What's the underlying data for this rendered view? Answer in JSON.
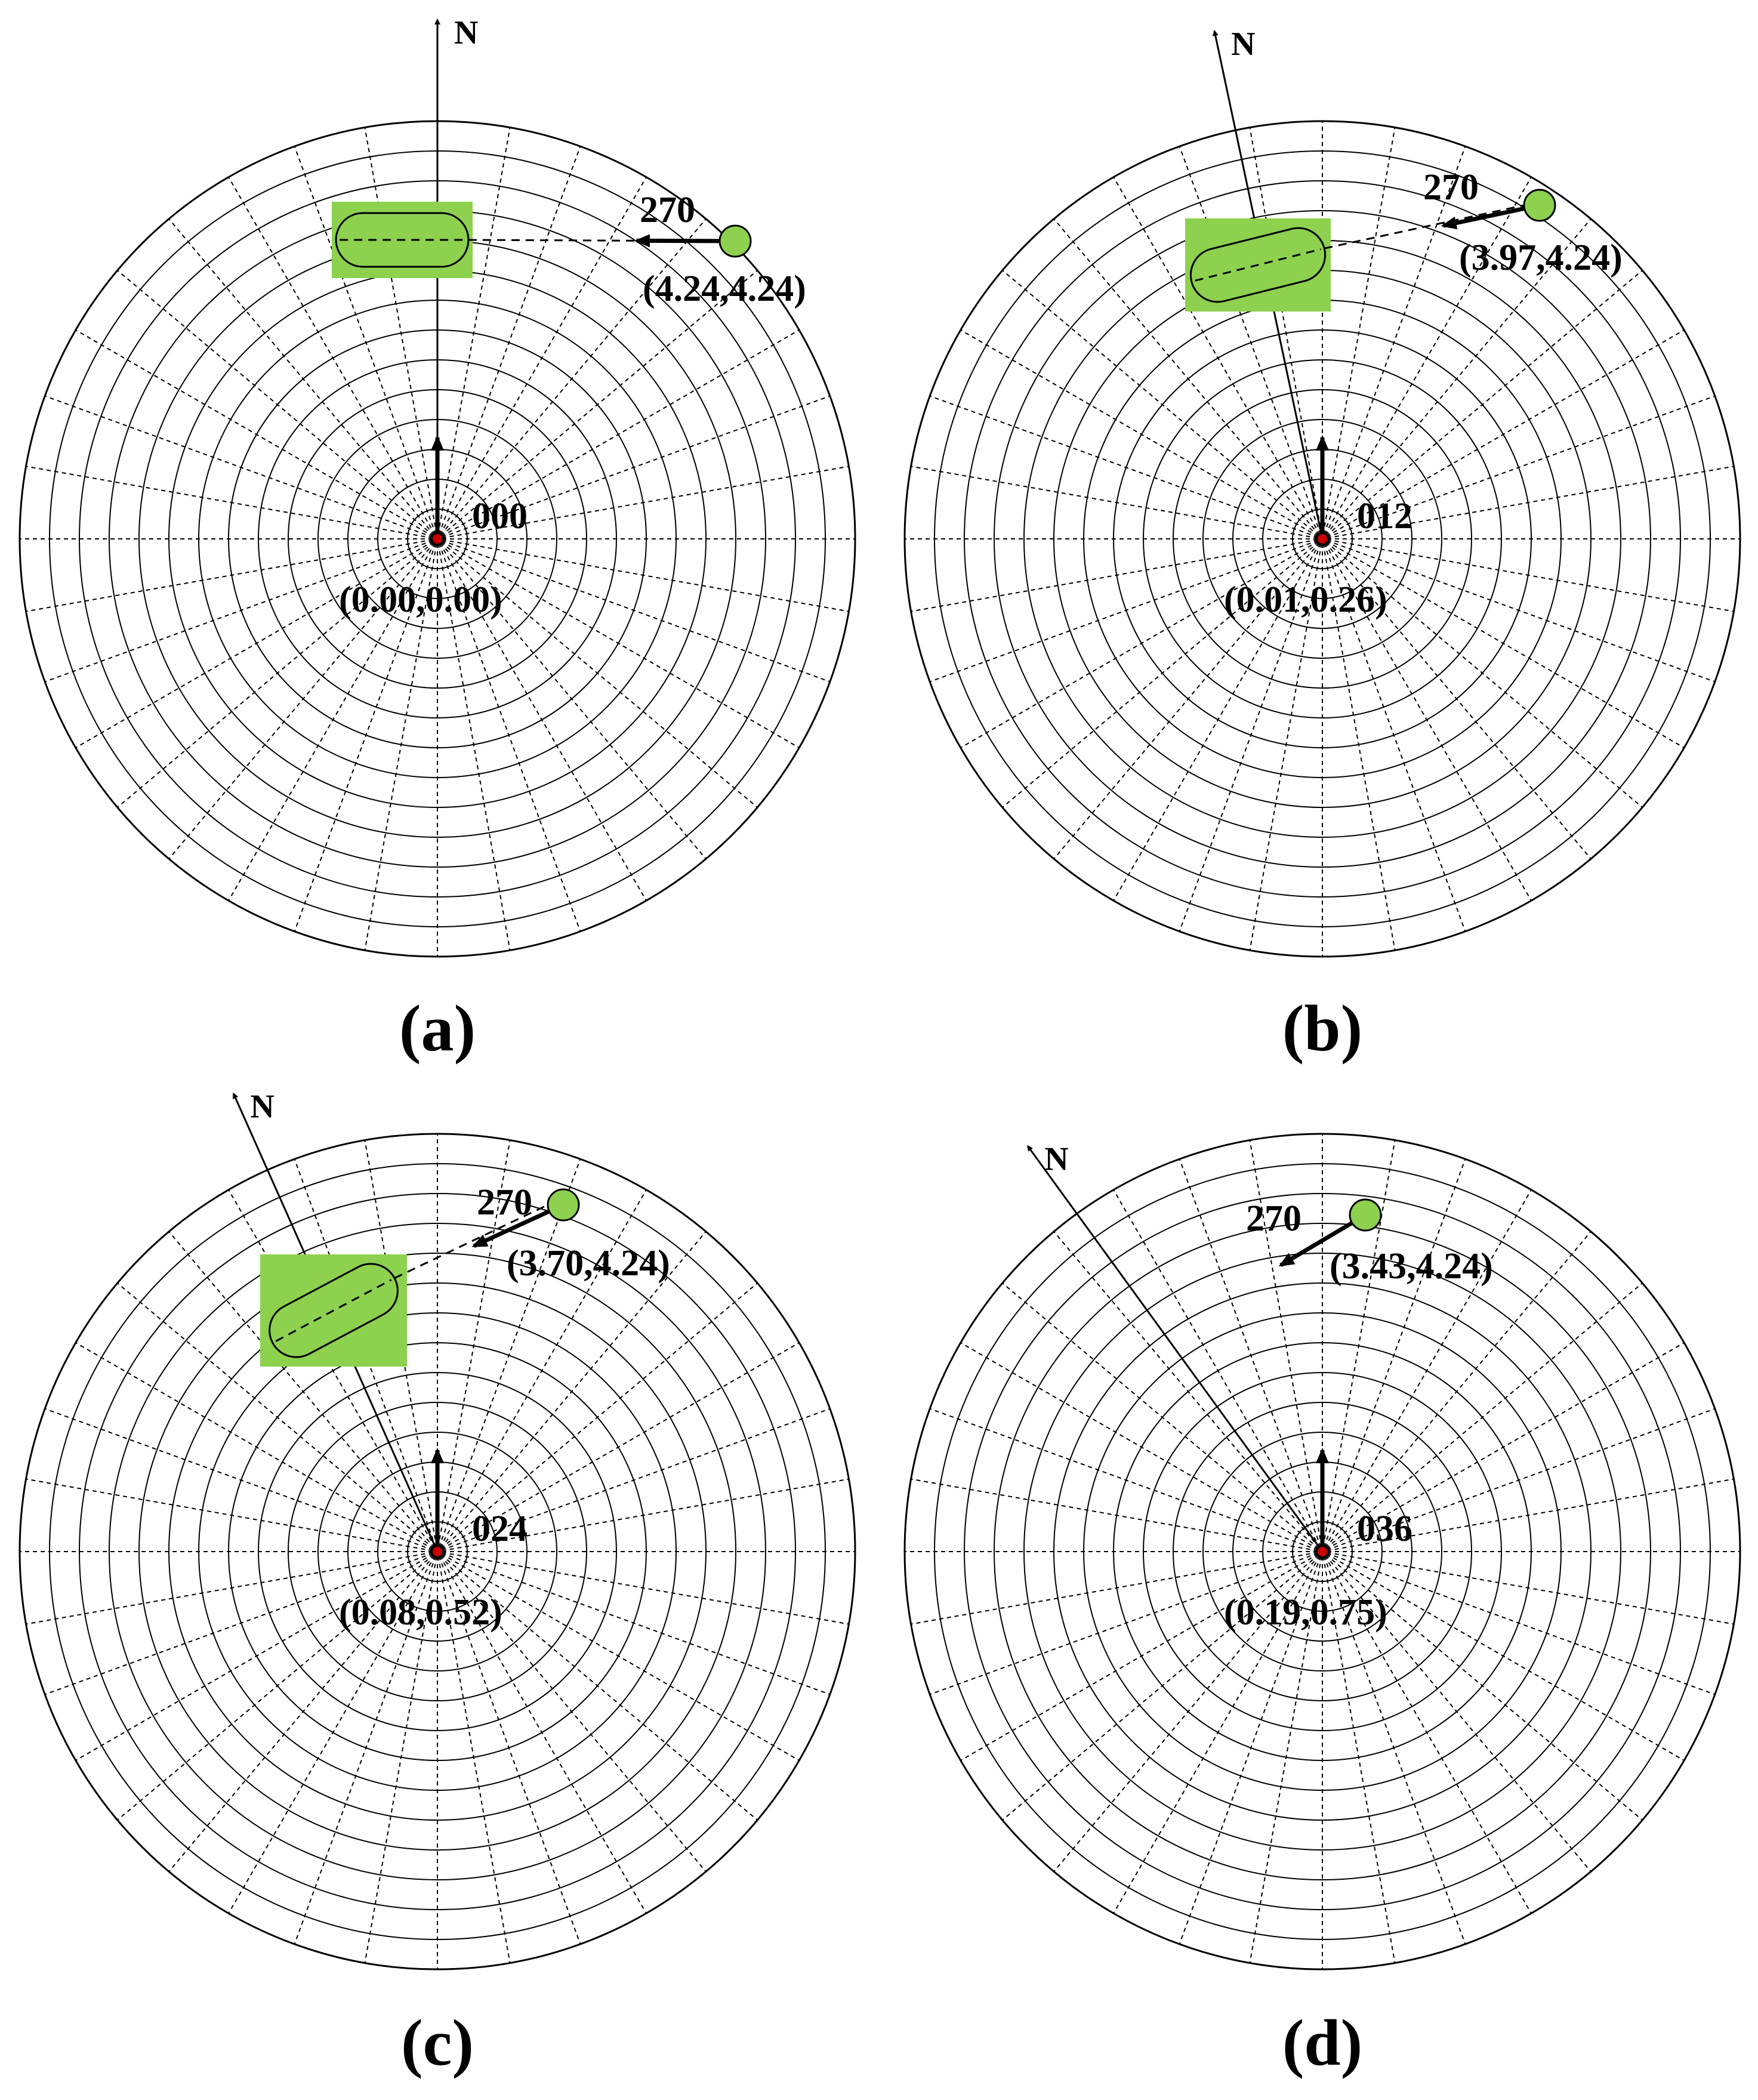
{
  "colors": {
    "grid": "#000000",
    "target_fill": "#8dd14f",
    "zone_fill": "#8dd14f",
    "own_ship_dot": "#cc0000",
    "text": "#000000"
  },
  "north_label": "N",
  "panels": [
    {
      "id": "a",
      "caption": "(a)",
      "own_course": "000",
      "own_position": "(0.00,0.00)",
      "north_rotation_deg": 0,
      "target_course": "270",
      "target_position": "(4.24,4.24)",
      "show_zone": true
    },
    {
      "id": "b",
      "caption": "(b)",
      "own_course": "012",
      "own_position": "(0.01,0.26)",
      "north_rotation_deg": -12,
      "target_course": "270",
      "target_position": "(3.97,4.24)",
      "show_zone": true
    },
    {
      "id": "c",
      "caption": "(c)",
      "own_course": "024",
      "own_position": "(0.08,0.52)",
      "north_rotation_deg": -24,
      "target_course": "270",
      "target_position": "(3.70,4.24)",
      "show_zone": true
    },
    {
      "id": "d",
      "caption": "(d)",
      "own_course": "036",
      "own_position": "(0.19,0.75)",
      "north_rotation_deg": -36,
      "target_course": "270",
      "target_position": "(3.43,4.24)",
      "show_zone": false
    }
  ]
}
